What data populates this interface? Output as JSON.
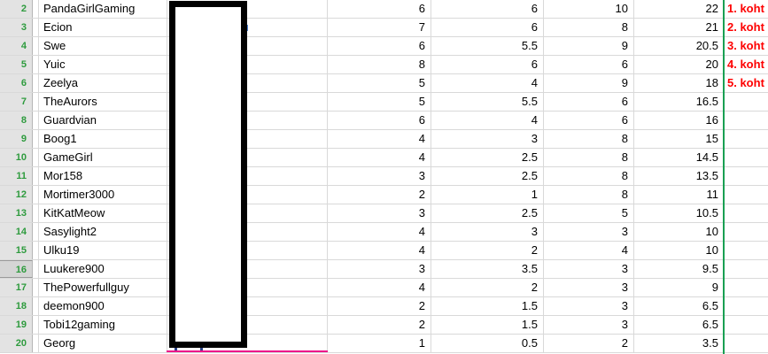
{
  "app": {
    "kind": "spreadsheet-leaderboard",
    "rank_suffix": "koht"
  },
  "colors": {
    "row_number_green": "#2e9b3e",
    "rank_red": "#fe0000",
    "divider_green": "#1aa053",
    "cell_border_magenta": "#ec128a",
    "row_header_bg": "#e3e3e3",
    "gridline": "#d9d9d9",
    "redaction_fill": "#ffffff",
    "redaction_border": "#000000"
  },
  "overlays": {
    "redaction_box": "black-bordered box covering hidden column",
    "green_divider": "vertical green border left of rank column",
    "magenta_underline": "magenta bottom border of covered cell in last row"
  },
  "rows": [
    {
      "row_number": "2",
      "name": "PandaGirlGaming",
      "score1": "6",
      "score2": "6",
      "score3": "10",
      "total": "22",
      "rank": "1. koht",
      "header_highlighted": false
    },
    {
      "row_number": "3",
      "name": "Ecion",
      "score1": "7",
      "score2": "6",
      "score3": "8",
      "total": "21",
      "rank": "2. koht",
      "header_highlighted": false
    },
    {
      "row_number": "4",
      "name": "Swe",
      "score1": "6",
      "score2": "5.5",
      "score3": "9",
      "total": "20.5",
      "rank": "3. koht",
      "header_highlighted": false
    },
    {
      "row_number": "5",
      "name": "Yuic",
      "score1": "8",
      "score2": "6",
      "score3": "6",
      "total": "20",
      "rank": "4. koht",
      "header_highlighted": false
    },
    {
      "row_number": "6",
      "name": "Zeelya",
      "score1": "5",
      "score2": "4",
      "score3": "9",
      "total": "18",
      "rank": "5. koht",
      "header_highlighted": false
    },
    {
      "row_number": "7",
      "name": "TheAurors",
      "score1": "5",
      "score2": "5.5",
      "score3": "6",
      "total": "16.5",
      "rank": "",
      "header_highlighted": false
    },
    {
      "row_number": "8",
      "name": "Guardvian",
      "score1": "6",
      "score2": "4",
      "score3": "6",
      "total": "16",
      "rank": "",
      "header_highlighted": false
    },
    {
      "row_number": "9",
      "name": "Boog1",
      "score1": "4",
      "score2": "3",
      "score3": "8",
      "total": "15",
      "rank": "",
      "header_highlighted": false
    },
    {
      "row_number": "10",
      "name": "GameGirl",
      "score1": "4",
      "score2": "2.5",
      "score3": "8",
      "total": "14.5",
      "rank": "",
      "header_highlighted": false
    },
    {
      "row_number": "11",
      "name": "Mor158",
      "score1": "3",
      "score2": "2.5",
      "score3": "8",
      "total": "13.5",
      "rank": "",
      "header_highlighted": false
    },
    {
      "row_number": "12",
      "name": "Mortimer3000",
      "score1": "2",
      "score2": "1",
      "score3": "8",
      "total": "11",
      "rank": "",
      "header_highlighted": false
    },
    {
      "row_number": "13",
      "name": "KitKatMeow",
      "score1": "3",
      "score2": "2.5",
      "score3": "5",
      "total": "10.5",
      "rank": "",
      "header_highlighted": false
    },
    {
      "row_number": "14",
      "name": "Sasylight2",
      "score1": "4",
      "score2": "3",
      "score3": "3",
      "total": "10",
      "rank": "",
      "header_highlighted": false
    },
    {
      "row_number": "15",
      "name": "Ulku19",
      "score1": "4",
      "score2": "2",
      "score3": "4",
      "total": "10",
      "rank": "",
      "header_highlighted": false
    },
    {
      "row_number": "16",
      "name": "Luukere900",
      "score1": "3",
      "score2": "3.5",
      "score3": "3",
      "total": "9.5",
      "rank": "",
      "header_highlighted": true
    },
    {
      "row_number": "17",
      "name": "ThePowerfullguy",
      "score1": "4",
      "score2": "2",
      "score3": "3",
      "total": "9",
      "rank": "",
      "header_highlighted": false
    },
    {
      "row_number": "18",
      "name": "deemon900",
      "score1": "2",
      "score2": "1.5",
      "score3": "3",
      "total": "6.5",
      "rank": "",
      "header_highlighted": false
    },
    {
      "row_number": "19",
      "name": "Tobi12gaming",
      "score1": "2",
      "score2": "1.5",
      "score3": "3",
      "total": "6.5",
      "rank": "",
      "header_highlighted": false
    },
    {
      "row_number": "20",
      "name": "Georg",
      "score1": "1",
      "score2": "0.5",
      "score3": "2",
      "total": "3.5",
      "rank": "",
      "header_highlighted": false
    }
  ]
}
